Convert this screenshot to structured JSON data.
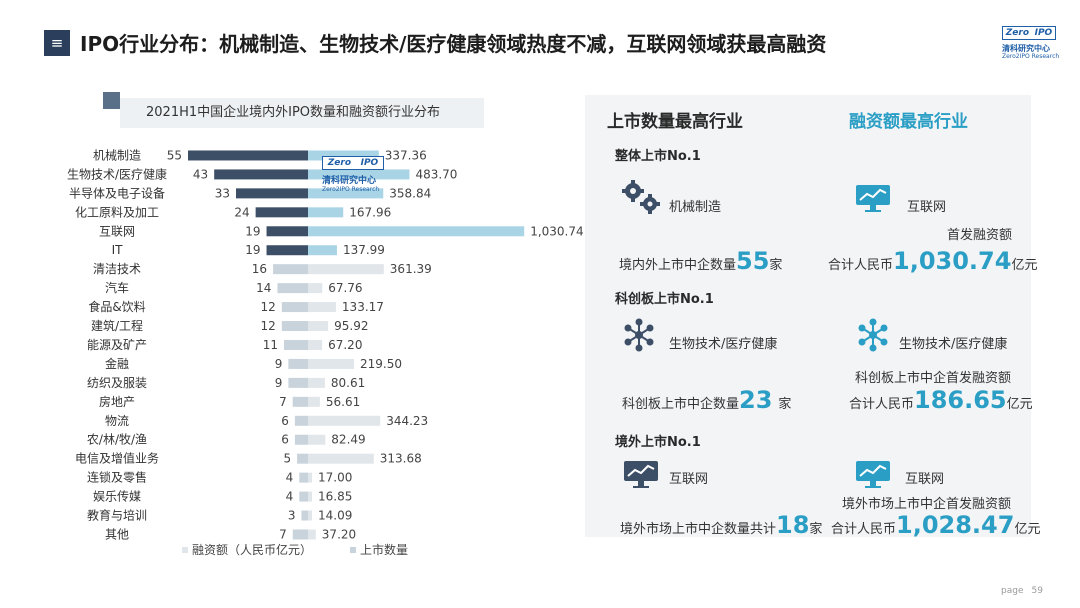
{
  "header": {
    "menu_icon": "≡",
    "title": "IPO行业分布：机械制造、生物技术/医疗健康领域热度不减，互联网领域获最高融资",
    "logo_box_left": "Zero",
    "logo_box_right": "IPO",
    "logo_cn": "清科研究中心",
    "logo_en": "Zero2IPO Research"
  },
  "chart_data": {
    "type": "bar",
    "title": "2021H1中国企业境内外IPO数量和融资额行业分布",
    "categories": [
      "机械制造",
      "生物技术/医疗健康",
      "半导体及电子设备",
      "化工原料及加工",
      "互联网",
      "IT",
      "清洁技术",
      "汽车",
      "食品&饮料",
      "建筑/工程",
      "能源及矿产",
      "金融",
      "纺织及服装",
      "房地产",
      "物流",
      "农/林/牧/渔",
      "电信及增值业务",
      "连锁及零售",
      "娱乐传媒",
      "教育与培训",
      "其他"
    ],
    "series": [
      {
        "name": "上市数量",
        "values": [
          55,
          43,
          33,
          24,
          19,
          19,
          16,
          14,
          12,
          12,
          11,
          9,
          9,
          7,
          6,
          6,
          5,
          4,
          4,
          3,
          7
        ],
        "labels": [
          "55",
          "43",
          "33",
          "24",
          "19",
          "19",
          "16",
          "14",
          "12",
          "12",
          "11",
          "9",
          "9",
          "7",
          "6",
          "6",
          "5",
          "4",
          "4",
          "3",
          "7"
        ]
      },
      {
        "name": "融资额（人民币亿元）",
        "values": [
          337.36,
          483.7,
          358.84,
          167.96,
          1030.74,
          137.99,
          361.39,
          67.76,
          133.17,
          95.92,
          67.2,
          219.5,
          80.61,
          56.61,
          344.23,
          82.49,
          313.68,
          17.0,
          16.85,
          14.09,
          37.2
        ],
        "labels": [
          "337.36",
          "483.70",
          "358.84",
          "167.96",
          "1,030.74",
          "137.99",
          "361.39",
          "67.76",
          "133.17",
          "95.92",
          "67.20",
          "219.50",
          "80.61",
          "56.61",
          "344.23",
          "82.49",
          "313.68",
          "17.00",
          "16.85",
          "14.09",
          "37.20"
        ]
      }
    ],
    "legend": [
      "融资额（人民币亿元）",
      "上市数量"
    ],
    "legend_position": "bottom",
    "colors": {
      "count_top": "#3d4f67",
      "count_rest": "#c9d3dc",
      "amount_top": "#a9d4e6",
      "amount_rest": "#e1e6ea"
    }
  },
  "watermark": {
    "box_left": "Zero",
    "box_right": "IPO",
    "cn": "清科研究中心",
    "en": "Zero2IPO Research"
  },
  "right_panel": {
    "heading_count": "上市数量最高行业",
    "heading_amount": "融资额最高行业",
    "overall": {
      "label": "整体上市No.1",
      "count_industry": "机械制造",
      "count_icon": "gears-icon",
      "count_prefix": "境内外上市中企数量",
      "count_value": "55",
      "count_suffix": "家",
      "amount_industry": "互联网",
      "amount_icon": "monitor-chart-icon",
      "amount_desc": "首发融资额",
      "amount_prefix": "合计人民币",
      "amount_value": "1,030.74",
      "amount_suffix": "亿元"
    },
    "star": {
      "label": "科创板上市No.1",
      "count_industry": "生物技术/医疗健康",
      "count_icon": "molecule-icon",
      "count_prefix": "科创板上市中企数量",
      "count_value": "23",
      "count_suffix": "家",
      "amount_industry": "生物技术/医疗健康",
      "amount_icon": "molecule-icon",
      "amount_desc": "科创板上市中企首发融资额",
      "amount_prefix": "合计人民币",
      "amount_value": "186.65",
      "amount_suffix": "亿元"
    },
    "overseas": {
      "label": "境外上市No.1",
      "count_industry": "互联网",
      "count_icon": "monitor-chart-icon",
      "count_prefix": "境外市场上市中企数量共计",
      "count_value": "18",
      "count_suffix": "家",
      "amount_industry": "互联网",
      "amount_icon": "monitor-chart-icon",
      "amount_desc": "境外市场上市中企首发融资额",
      "amount_prefix": "合计人民币",
      "amount_value": "1,028.47",
      "amount_suffix": "亿元"
    },
    "accent_color": "#2a9ec4"
  },
  "footer": {
    "page_label": "page",
    "page_number": "59"
  }
}
